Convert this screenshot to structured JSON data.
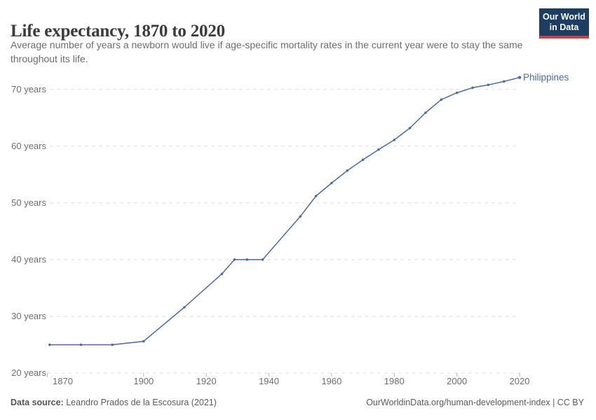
{
  "header": {
    "title": "Life expectancy, 1870 to 2020",
    "subtitle": "Average number of years a newborn would live if age-specific mortality rates in the current year were to stay the same throughout its life.",
    "logo": {
      "line1": "Our World",
      "line2": "in Data"
    }
  },
  "chart_data": {
    "type": "line",
    "title": "Life expectancy, 1870 to 2020",
    "xlabel": "",
    "ylabel": "",
    "x_axis": {
      "range": [
        1869,
        2023
      ],
      "ticks": [
        {
          "value": 1870,
          "label": "1870"
        },
        {
          "value": 1900,
          "label": "1900"
        },
        {
          "value": 1920,
          "label": "1920"
        },
        {
          "value": 1940,
          "label": "1940"
        },
        {
          "value": 1960,
          "label": "1960"
        },
        {
          "value": 1980,
          "label": "1980"
        },
        {
          "value": 2000,
          "label": "2000"
        },
        {
          "value": 2020,
          "label": "2020"
        }
      ]
    },
    "y_axis": {
      "range": [
        20,
        74
      ],
      "grid": "dashed",
      "ticks": [
        {
          "value": 20,
          "label": "20 years"
        },
        {
          "value": 30,
          "label": "30 years"
        },
        {
          "value": 40,
          "label": "40 years"
        },
        {
          "value": 50,
          "label": "50 years"
        },
        {
          "value": 60,
          "label": "60 years"
        },
        {
          "value": 70,
          "label": "70 years"
        }
      ]
    },
    "series": [
      {
        "name": "Philippines",
        "color": "#4c6a9c",
        "points": [
          [
            1870,
            25.0
          ],
          [
            1880,
            25.0
          ],
          [
            1890,
            25.0
          ],
          [
            1900,
            25.6
          ],
          [
            1913,
            31.6
          ],
          [
            1925,
            37.5
          ],
          [
            1929,
            40.0
          ],
          [
            1933,
            40.0
          ],
          [
            1938,
            40.0
          ],
          [
            1950,
            47.6
          ],
          [
            1955,
            51.2
          ],
          [
            1960,
            53.5
          ],
          [
            1965,
            55.7
          ],
          [
            1970,
            57.6
          ],
          [
            1975,
            59.4
          ],
          [
            1980,
            61.1
          ],
          [
            1985,
            63.2
          ],
          [
            1990,
            65.9
          ],
          [
            1995,
            68.2
          ],
          [
            2000,
            69.4
          ],
          [
            2005,
            70.3
          ],
          [
            2010,
            70.8
          ],
          [
            2015,
            71.4
          ],
          [
            2020,
            72.1
          ]
        ]
      }
    ],
    "legend_position": "end-of-line"
  },
  "footer": {
    "source_label": "Data source:",
    "source": "Leandro Prados de la Escosura (2021)",
    "attribution": "OurWorldinData.org/human-development-index | CC BY"
  },
  "colors": {
    "logo_bg": "#1d3d63",
    "logo_accent": "#d93a34",
    "line": "#4c6a9c",
    "gridline": "#dddddd",
    "tick_mark": "#b5b5b5",
    "axis_text": "#6e6e6e"
  }
}
